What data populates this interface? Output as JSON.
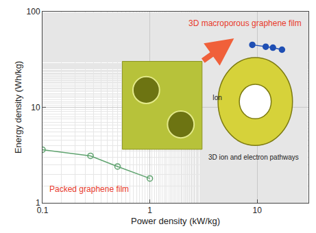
{
  "chart_data": {
    "type": "line",
    "x_label": "Power density (kW/kg)",
    "y_label": "Energy density (Wh/kg)",
    "log": true,
    "grid": true,
    "xlim": [
      0.1,
      30
    ],
    "xticks": [
      0.1,
      1,
      10
    ],
    "ylim": [
      1,
      100
    ],
    "yticks": [
      1,
      10,
      100
    ],
    "series": [
      {
        "name": "Packed graphene film",
        "color": "#5fa36f",
        "marker": "open circle",
        "line_style": "solid",
        "x": [
          0.1,
          0.28,
          0.5,
          1.0
        ],
        "values": [
          3.6,
          3.1,
          2.4,
          1.8
        ]
      },
      {
        "name": "3D macroporous graphene film",
        "color": "#1f4fb4",
        "marker": "circle",
        "line_style": "solid",
        "x": [
          9,
          12,
          14,
          17
        ],
        "values": [
          45,
          43,
          42,
          40
        ]
      }
    ],
    "annotations": [
      "Ion",
      "3D ion and electron pathways"
    ]
  }
}
